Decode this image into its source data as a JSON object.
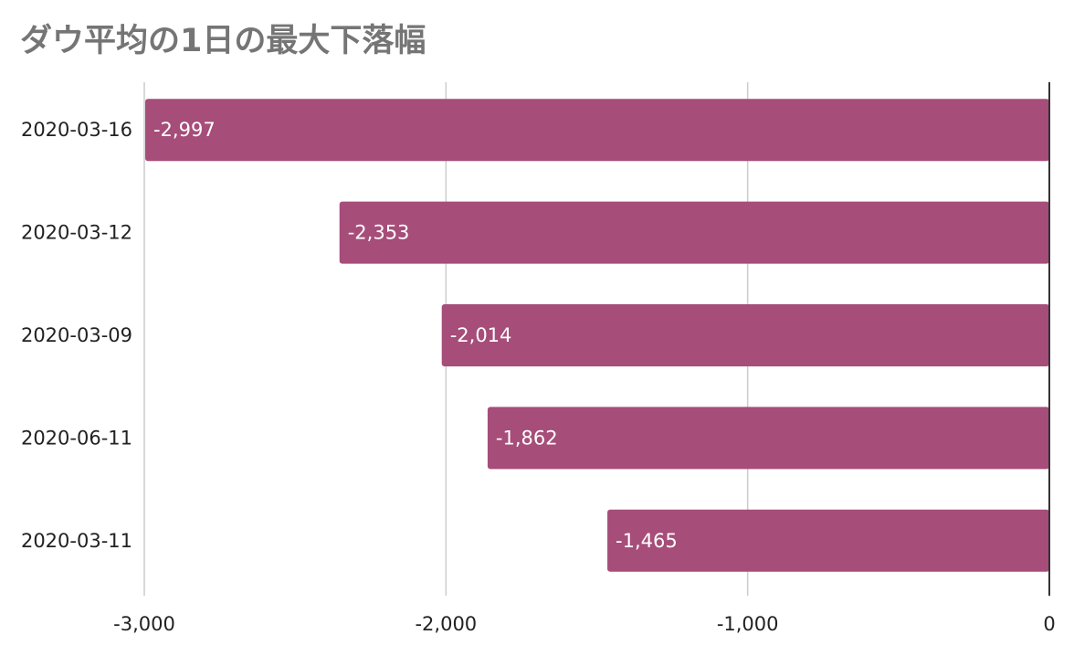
{
  "chart_data": {
    "type": "bar",
    "orientation": "horizontal",
    "title": "ダウ平均の1日の最大下落幅",
    "categories": [
      "2020-03-16",
      "2020-03-12",
      "2020-03-09",
      "2020-06-11",
      "2020-03-11"
    ],
    "values": [
      -2997,
      -2353,
      -2014,
      -1862,
      -1465
    ],
    "data_labels": [
      "-2,997",
      "-2,353",
      "-2,014",
      "-1,862",
      "-1,465"
    ],
    "xlim": [
      -3000,
      0
    ],
    "xticks": [
      -3000,
      -2000,
      -1000,
      0
    ],
    "xtick_labels": [
      "-3,000",
      "-2,000",
      "-1,000",
      "0"
    ],
    "xlabel": "",
    "ylabel": "",
    "grid": true,
    "legend": "none",
    "bar_color": "#a64d79"
  }
}
